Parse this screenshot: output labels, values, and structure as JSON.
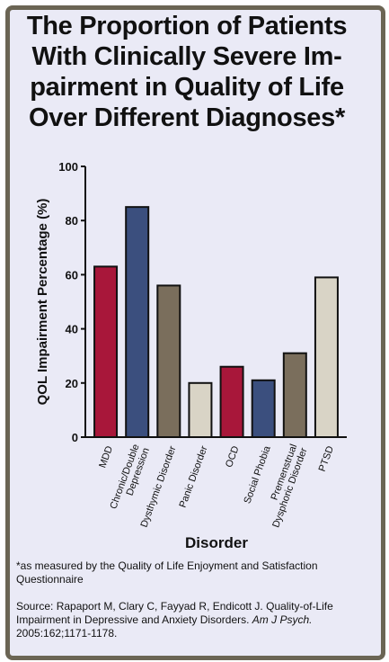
{
  "title_lines": [
    "The Proportion of Patients",
    "With Clinically Severe Im-",
    "pairment in Quality of Life",
    "Over Different Diagnoses*"
  ],
  "footnote": "*as measured by the Quality of Life Enjoyment and Satisfaction Questionnaire",
  "source": {
    "prefix": "Source: Rapaport M, Clary C, Fayyad R, Endicott J. Quality-of-Life Impairment in Depressive and Anxiety Disorders.",
    "journal": "Am J Psych.",
    "citation": "2005:162;1171-1178."
  },
  "colors": {
    "red": "#a8173a",
    "blue": "#3b4f7e",
    "olive": "#7a6e5c",
    "light": "#d9d4c6"
  },
  "chart_data": {
    "type": "bar",
    "categories": [
      "MDD",
      "Chronic/Double Depression",
      "Dysthymic Disorder",
      "Panic Disorder",
      "OCD",
      "Social Phobia",
      "Premenstrual Dysphoric Disorder",
      "PTSD"
    ],
    "category_label_lines": [
      [
        "MDD"
      ],
      [
        "Chronic/Double",
        "Depression"
      ],
      [
        "Dysthymic Disorder"
      ],
      [
        "Panic Disorder"
      ],
      [
        "OCD"
      ],
      [
        "Social Phobia"
      ],
      [
        "Premenstrual",
        "Dysphoric Disorder"
      ],
      [
        "PTSD"
      ]
    ],
    "values": [
      63,
      85,
      56,
      20,
      26,
      21,
      31,
      59
    ],
    "bar_colors": [
      "#a8173a",
      "#3b4f7e",
      "#7a6e5c",
      "#d9d4c6",
      "#a8173a",
      "#3b4f7e",
      "#7a6e5c",
      "#d9d4c6"
    ],
    "xlabel": "Disorder",
    "ylabel": "QOL Impairment Percentage (%)",
    "ylim": [
      0,
      100
    ],
    "yticks": [
      "0",
      "20",
      "40",
      "60",
      "80",
      "100"
    ],
    "grid": false
  }
}
